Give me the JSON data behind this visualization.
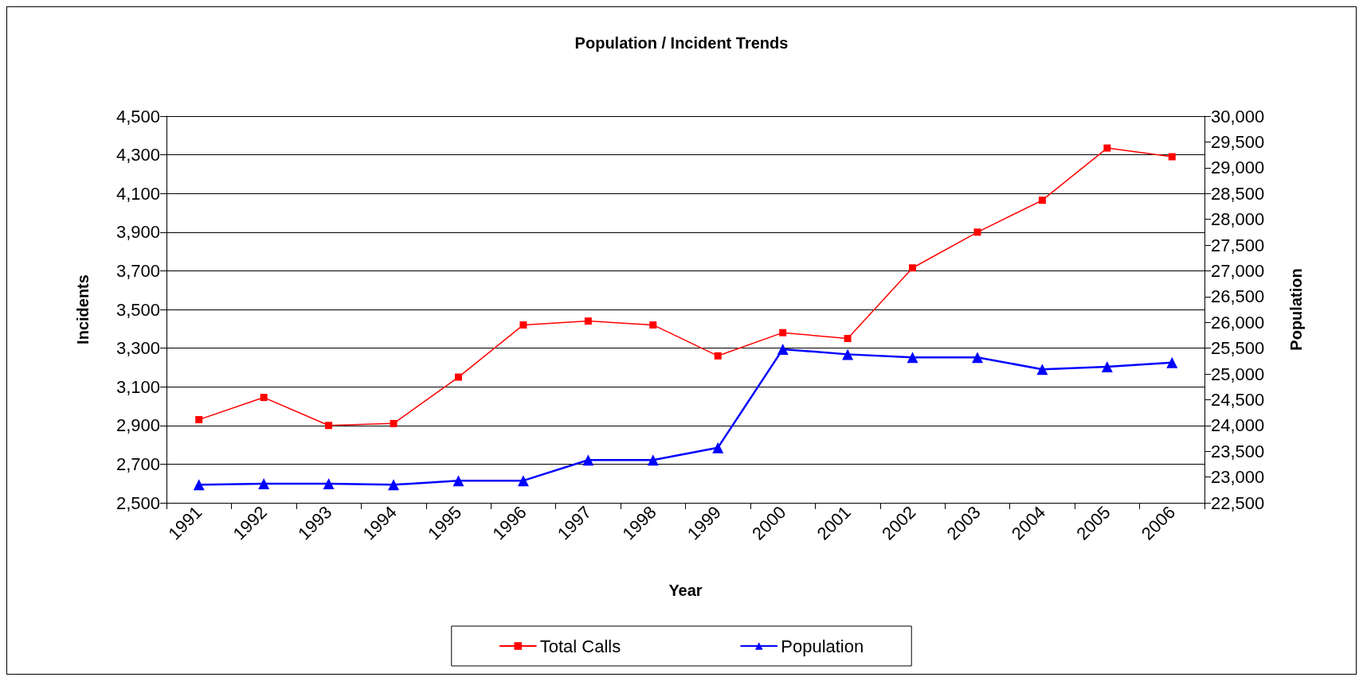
{
  "chart_data": {
    "type": "line",
    "title": "Population / Incident Trends",
    "xlabel": "Year",
    "ylabel": "Incidents",
    "y2label": "Population",
    "categories": [
      "1991",
      "1992",
      "1993",
      "1994",
      "1995",
      "1996",
      "1997",
      "1998",
      "1999",
      "2000",
      "2001",
      "2002",
      "2003",
      "2004",
      "2005",
      "2006"
    ],
    "series": [
      {
        "name": "Total Calls",
        "color": "#ff0000",
        "marker": "square",
        "values": [
          2930,
          3045,
          2900,
          2910,
          3150,
          3420,
          3440,
          3420,
          3260,
          3380,
          3350,
          3715,
          3900,
          4065,
          4335,
          4290
        ]
      },
      {
        "name": "Population",
        "color": "#0000ff",
        "marker": "triangle",
        "axis": "y2",
        "values": [
          22850,
          22870,
          22870,
          22850,
          22930,
          22930,
          23330,
          23330,
          23570,
          25480,
          25380,
          25320,
          25320,
          25090,
          25140,
          25220
        ]
      }
    ],
    "ylim": [
      2500,
      4500
    ],
    "yticks": [
      {
        "value": 2500,
        "label": "2,500"
      },
      {
        "value": 2700,
        "label": "2,700"
      },
      {
        "value": 2900,
        "label": "2,900"
      },
      {
        "value": 3100,
        "label": "3,100"
      },
      {
        "value": 3300,
        "label": "3,300"
      },
      {
        "value": 3500,
        "label": "3,500"
      },
      {
        "value": 3700,
        "label": "3,700"
      },
      {
        "value": 3900,
        "label": "3,900"
      },
      {
        "value": 4100,
        "label": "4,100"
      },
      {
        "value": 4300,
        "label": "4,300"
      },
      {
        "value": 4500,
        "label": "4,500"
      }
    ],
    "y2lim": [
      22500,
      30000
    ],
    "y2ticks": [
      {
        "value": 22500,
        "label": "22,500"
      },
      {
        "value": 23000,
        "label": "23,000"
      },
      {
        "value": 23500,
        "label": "23,500"
      },
      {
        "value": 24000,
        "label": "24,000"
      },
      {
        "value": 24500,
        "label": "24,500"
      },
      {
        "value": 25000,
        "label": "25,000"
      },
      {
        "value": 25500,
        "label": "25,500"
      },
      {
        "value": 26000,
        "label": "26,000"
      },
      {
        "value": 26500,
        "label": "26,500"
      },
      {
        "value": 27000,
        "label": "27,000"
      },
      {
        "value": 27500,
        "label": "27,500"
      },
      {
        "value": 28000,
        "label": "28,000"
      },
      {
        "value": 28500,
        "label": "28,500"
      },
      {
        "value": 29000,
        "label": "29,000"
      },
      {
        "value": 29500,
        "label": "29,500"
      },
      {
        "value": 30000,
        "label": "30,000"
      }
    ],
    "grid": "y",
    "legend": "bottom",
    "line_style": "solid"
  }
}
